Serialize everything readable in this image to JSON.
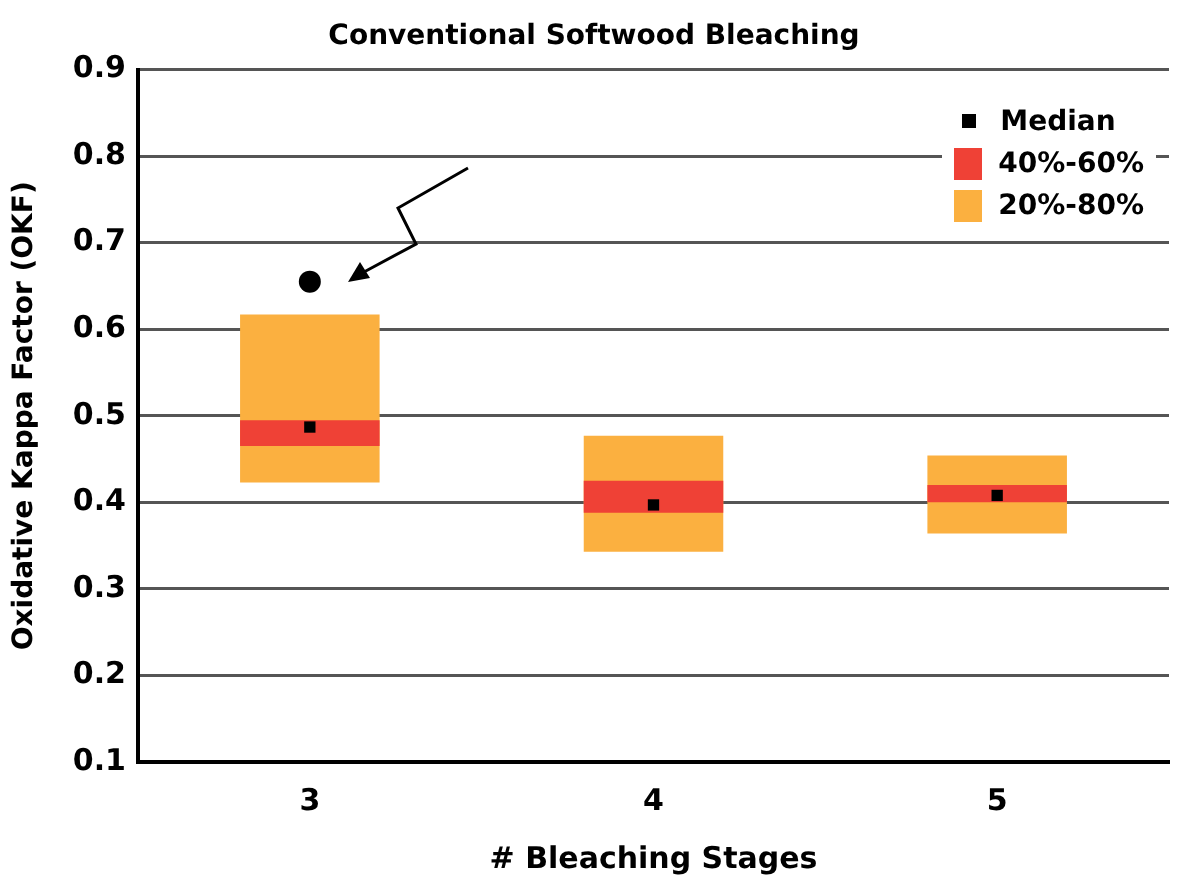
{
  "chart_data": {
    "type": "bar",
    "title": "Conventional Softwood Bleaching",
    "xlabel": "# Bleaching Stages",
    "ylabel": "Oxidative Kappa Factor (OKF)",
    "categories": [
      "3",
      "4",
      "5"
    ],
    "series": [
      {
        "name": "20%-80%",
        "color": "#fbb040",
        "base": [
          0.423,
          0.343,
          0.364
        ],
        "values": [
          0.194,
          0.134,
          0.09
        ]
      },
      {
        "name": "40%-60%",
        "color": "#ef4136",
        "base": [
          0.465,
          0.388,
          0.4
        ],
        "values": [
          0.03,
          0.037,
          0.02
        ]
      },
      {
        "name": "Median",
        "type": "scatter",
        "color": "#000000",
        "marker": "square",
        "values": [
          0.487,
          0.397,
          0.408
        ]
      },
      {
        "type": "scatter",
        "color": "#000000",
        "marker": "circle",
        "values": [
          0.655,
          null,
          null
        ]
      }
    ],
    "ylim": [
      0.1,
      0.9
    ],
    "yticks": [
      0.1,
      0.2,
      0.3,
      0.4,
      0.5,
      0.6,
      0.7,
      0.8,
      0.9
    ],
    "grid": "y",
    "legend": "top right"
  }
}
